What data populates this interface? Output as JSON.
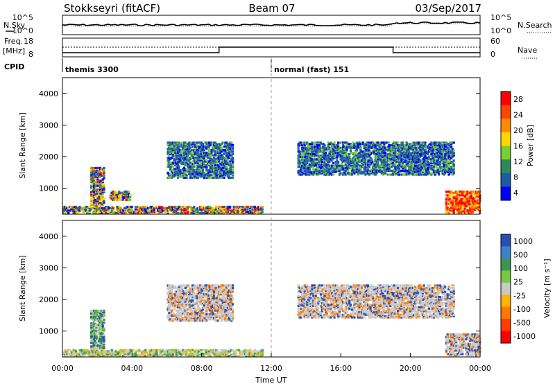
{
  "header": {
    "left_title": "Stokkseyri (fitACF)",
    "center_title": "Beam 07",
    "right_title": "03/Sep/2017"
  },
  "top_panels": {
    "nsky_label": "N.Sky",
    "nsearch_label": "N.Search",
    "noise_scale_top": "10^5",
    "noise_scale_bottom": "10^0",
    "freq_label": "Freq.",
    "freq_unit": "[MHz]",
    "freq_ticks": [
      "18",
      "8"
    ],
    "nave_label": "Nave",
    "nave_ticks": [
      "60",
      "0"
    ],
    "cpid_label": "CPID",
    "cpid_segments": [
      {
        "start_h": 0,
        "end_h": 12,
        "label": "themis 3300"
      },
      {
        "start_h": 12,
        "end_h": 24,
        "label": "normal (fast) 151"
      }
    ]
  },
  "chart_data": [
    {
      "type": "heatmap",
      "title": "",
      "xlabel": "",
      "ylabel": "Slant Range [km]",
      "xlim": [
        0,
        24
      ],
      "ylim": [
        180,
        4500
      ],
      "y_ticks": [
        1000,
        2000,
        3000,
        4000
      ],
      "colorbar": {
        "label": "Power [dB]",
        "ticks": [
          "28",
          "24",
          "20",
          "16",
          "12",
          "8",
          "4"
        ],
        "colors": [
          "#ff0000",
          "#ff4500",
          "#ff8c00",
          "#ffd700",
          "#7ccd32",
          "#2e8b57",
          "#1e5aa8",
          "#0000ff"
        ]
      },
      "echo_regions": [
        {
          "t0": 0.0,
          "t1": 11.5,
          "r0": 180,
          "r1": 420,
          "level": "mixed"
        },
        {
          "t0": 1.6,
          "t1": 2.4,
          "r0": 400,
          "r1": 1650,
          "level": "mixed"
        },
        {
          "t0": 2.7,
          "t1": 3.9,
          "r0": 600,
          "r1": 900,
          "level": "mixed"
        },
        {
          "t0": 6.0,
          "t1": 9.8,
          "r0": 1300,
          "r1": 2450,
          "level": "low"
        },
        {
          "t0": 13.5,
          "t1": 22.5,
          "r0": 1400,
          "r1": 2450,
          "level": "low"
        },
        {
          "t0": 22.0,
          "t1": 24.0,
          "r0": 200,
          "r1": 900,
          "level": "high"
        }
      ]
    },
    {
      "type": "heatmap",
      "title": "",
      "xlabel": "Time UT",
      "ylabel": "Slant Range [km]",
      "xlim": [
        0,
        24
      ],
      "ylim": [
        180,
        4500
      ],
      "x_ticks": [
        "00:00",
        "04:00",
        "08:00",
        "12:00",
        "16:00",
        "20:00",
        "00:00"
      ],
      "y_ticks": [
        1000,
        2000,
        3000,
        4000
      ],
      "colorbar": {
        "label": "Velocity [m s⁻¹]",
        "ticks": [
          "1000",
          "500",
          "100",
          "25",
          "-25",
          "-100",
          "-500",
          "-1000"
        ],
        "colors": [
          "#2850b4",
          "#3c82c8",
          "#3c9650",
          "#78c840",
          "#c8c8c8",
          "#ffb400",
          "#ff7800",
          "#ff3c00",
          "#ff0000"
        ]
      },
      "echo_regions": [
        {
          "t0": 0.0,
          "t1": 11.5,
          "r0": 180,
          "r1": 400,
          "level": "mixed"
        },
        {
          "t0": 1.6,
          "t1": 2.4,
          "r0": 400,
          "r1": 1650,
          "level": "green"
        },
        {
          "t0": 6.0,
          "t1": 9.8,
          "r0": 1300,
          "r1": 2450,
          "level": "grey"
        },
        {
          "t0": 13.5,
          "t1": 22.5,
          "r0": 1400,
          "r1": 2450,
          "level": "grey"
        },
        {
          "t0": 22.0,
          "t1": 24.0,
          "r0": 200,
          "r1": 900,
          "level": "grey"
        }
      ]
    }
  ]
}
